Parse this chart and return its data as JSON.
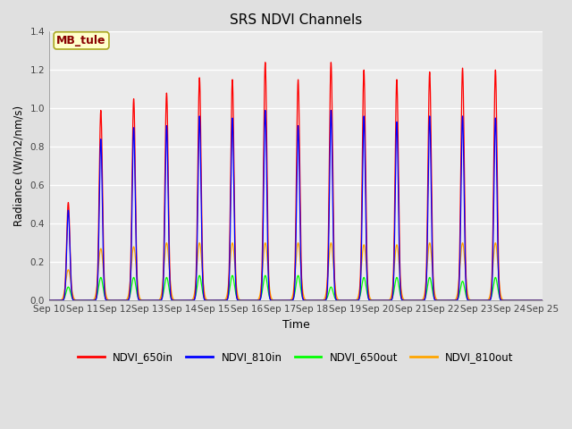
{
  "title": "SRS NDVI Channels",
  "xlabel": "Time",
  "ylabel": "Radiance (W/m2/nm/s)",
  "annotation_text": "MB_tule",
  "annotation_bg": "#ffffcc",
  "annotation_border": "#aaa820",
  "annotation_text_color": "#880000",
  "ylim": [
    0.0,
    1.4
  ],
  "n_days": 15,
  "xtick_labels": [
    "Sep 10",
    "Sep 11",
    "Sep 12",
    "Sep 13",
    "Sep 14",
    "Sep 15",
    "Sep 16",
    "Sep 17",
    "Sep 18",
    "Sep 19",
    "Sep 20",
    "Sep 21",
    "Sep 22",
    "Sep 23",
    "Sep 24",
    "Sep 25"
  ],
  "legend_labels": [
    "NDVI_650in",
    "NDVI_810in",
    "NDVI_650out",
    "NDVI_810out"
  ],
  "bg_color": "#e0e0e0",
  "plot_bg_color": "#ebebeb",
  "grid_color": "white",
  "peaks_650in": [
    0.51,
    0.99,
    1.05,
    1.08,
    1.16,
    1.15,
    1.24,
    1.15,
    1.24,
    1.2,
    1.15,
    1.19,
    1.21,
    1.2
  ],
  "peaks_810in": [
    0.47,
    0.84,
    0.9,
    0.91,
    0.96,
    0.95,
    0.99,
    0.91,
    0.99,
    0.96,
    0.93,
    0.96,
    0.96,
    0.95
  ],
  "peaks_650out": [
    0.07,
    0.12,
    0.12,
    0.12,
    0.13,
    0.13,
    0.13,
    0.13,
    0.07,
    0.12,
    0.12,
    0.12,
    0.1,
    0.12
  ],
  "peaks_810out": [
    0.16,
    0.27,
    0.28,
    0.3,
    0.3,
    0.3,
    0.3,
    0.3,
    0.3,
    0.29,
    0.29,
    0.3,
    0.3,
    0.3
  ],
  "peak_offsets": [
    0.58,
    1.57,
    2.57,
    3.57,
    4.57,
    5.57,
    6.57,
    7.57,
    8.57,
    9.57,
    10.57,
    11.57,
    12.57,
    13.57
  ]
}
